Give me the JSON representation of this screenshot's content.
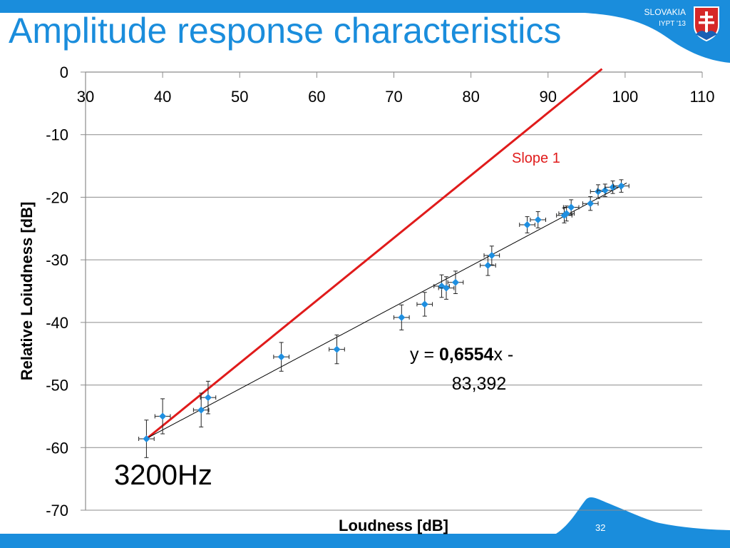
{
  "slide": {
    "title": "Amplitude response characteristics",
    "country": "SLOVAKIA",
    "event": "IYPT '13",
    "slide_number": "32"
  },
  "colors": {
    "brand_blue": "#1a8ddc",
    "slope_line": "#e01b1b",
    "marker": "#1f8fe0",
    "crest_red": "#d62828"
  },
  "chart_data": {
    "type": "scatter",
    "xlabel": "Loudness [dB]",
    "ylabel": "Relative Loiudness [dB]",
    "xlim": [
      30,
      110
    ],
    "ylim": [
      -70,
      0
    ],
    "x_ticks": [
      "30",
      "40",
      "50",
      "60",
      "70",
      "80",
      "90",
      "100",
      "110"
    ],
    "y_ticks": [
      "0",
      "-10",
      "-20",
      "-30",
      "-40",
      "-50",
      "-60",
      "-70"
    ],
    "grid": "horizontal",
    "points": [
      {
        "x": 37.9,
        "y": -58.6,
        "xerr": 1.0,
        "yerr": 3.0
      },
      {
        "x": 40.0,
        "y": -55.0,
        "xerr": 1.0,
        "yerr": 2.8
      },
      {
        "x": 45.0,
        "y": -54.0,
        "xerr": 1.0,
        "yerr": 2.7
      },
      {
        "x": 45.9,
        "y": -52.0,
        "xerr": 1.0,
        "yerr": 2.6
      },
      {
        "x": 55.4,
        "y": -45.5,
        "xerr": 1.0,
        "yerr": 2.3
      },
      {
        "x": 62.6,
        "y": -44.3,
        "xerr": 1.0,
        "yerr": 2.3
      },
      {
        "x": 71.0,
        "y": -39.2,
        "xerr": 1.0,
        "yerr": 2.0
      },
      {
        "x": 74.0,
        "y": -37.1,
        "xerr": 1.0,
        "yerr": 1.9
      },
      {
        "x": 76.2,
        "y": -34.2,
        "xerr": 1.0,
        "yerr": 1.8
      },
      {
        "x": 76.8,
        "y": -34.5,
        "xerr": 1.0,
        "yerr": 1.8
      },
      {
        "x": 78.0,
        "y": -33.6,
        "xerr": 1.0,
        "yerr": 1.8
      },
      {
        "x": 82.2,
        "y": -30.9,
        "xerr": 1.0,
        "yerr": 1.6
      },
      {
        "x": 82.7,
        "y": -29.3,
        "xerr": 1.0,
        "yerr": 1.5
      },
      {
        "x": 87.3,
        "y": -24.4,
        "xerr": 1.0,
        "yerr": 1.3
      },
      {
        "x": 88.7,
        "y": -23.6,
        "xerr": 1.0,
        "yerr": 1.3
      },
      {
        "x": 92.1,
        "y": -22.9,
        "xerr": 1.0,
        "yerr": 1.2
      },
      {
        "x": 92.4,
        "y": -22.6,
        "xerr": 1.0,
        "yerr": 1.2
      },
      {
        "x": 93.0,
        "y": -21.6,
        "xerr": 1.0,
        "yerr": 1.2
      },
      {
        "x": 95.5,
        "y": -21.0,
        "xerr": 1.0,
        "yerr": 1.1
      },
      {
        "x": 96.5,
        "y": -19.1,
        "xerr": 1.0,
        "yerr": 1.1
      },
      {
        "x": 97.4,
        "y": -18.9,
        "xerr": 1.0,
        "yerr": 1.0
      },
      {
        "x": 98.4,
        "y": -18.4,
        "xerr": 1.0,
        "yerr": 1.0
      },
      {
        "x": 99.5,
        "y": -18.2,
        "xerr": 1.0,
        "yerr": 1.0
      }
    ],
    "trendline": {
      "slope": 0.6554,
      "intercept": -83.392,
      "x_range": [
        37.9,
        100.2
      ]
    },
    "slope_line": {
      "label": "Slope 1",
      "x_range": [
        37.9,
        97.0
      ],
      "slope": 1,
      "y_at_start": -58.6
    },
    "equation": {
      "prefix": "y = ",
      "coef": "0,6554",
      "suffix": "x -",
      "line2": "83,392"
    },
    "annotation": "3200Hz"
  }
}
